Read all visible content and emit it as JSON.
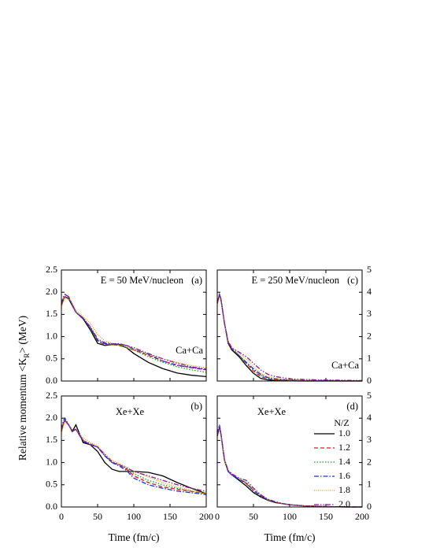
{
  "y_label": {
    "before": "Relative momentum <K",
    "sub": "R",
    "after": "> (MeV)"
  },
  "chart_data": [
    {
      "type": "line",
      "panel": "(a)",
      "energy": "E = 50 MeV/nucleon",
      "system": "Ca+Ca",
      "xtick_labels": false,
      "yaxis_side": "left",
      "x": [
        0,
        3,
        5,
        10,
        15,
        20,
        30,
        40,
        50,
        60,
        70,
        80,
        90,
        100,
        120,
        140,
        160,
        180,
        200
      ],
      "xlim": [
        0,
        200
      ],
      "xticks": [
        0,
        50,
        100,
        150,
        200
      ],
      "ylim": [
        0,
        2.5
      ],
      "yticks": [
        {
          "value": 0,
          "label": "0.0"
        },
        {
          "value": 0.5,
          "label": "0.5"
        },
        {
          "value": 1,
          "label": "1.0"
        },
        {
          "value": 1.5,
          "label": "1.5"
        },
        {
          "value": 2,
          "label": "2.0"
        },
        {
          "value": 2.5,
          "label": "2.5"
        }
      ],
      "series": [
        {
          "color": "#000000",
          "style": "solid",
          "values": [
            1.7,
            1.85,
            1.9,
            1.85,
            1.7,
            1.55,
            1.4,
            1.15,
            0.85,
            0.8,
            0.82,
            0.82,
            0.75,
            0.62,
            0.42,
            0.28,
            0.18,
            0.13,
            0.1
          ]
        },
        {
          "color": "#e8141c",
          "style": "dashed",
          "values": [
            1.7,
            1.85,
            1.9,
            1.88,
            1.72,
            1.55,
            1.42,
            1.2,
            0.9,
            0.82,
            0.82,
            0.8,
            0.75,
            0.7,
            0.58,
            0.45,
            0.36,
            0.3,
            0.25
          ]
        },
        {
          "color": "#1a9a1a",
          "style": "dotted",
          "values": [
            1.7,
            1.85,
            1.9,
            1.87,
            1.72,
            1.55,
            1.42,
            1.18,
            0.9,
            0.82,
            0.82,
            0.8,
            0.75,
            0.7,
            0.55,
            0.42,
            0.32,
            0.25,
            0.2
          ]
        },
        {
          "color": "#1c2fd8",
          "style": "dashdot",
          "values": [
            1.75,
            1.9,
            1.95,
            1.9,
            1.72,
            1.55,
            1.4,
            1.2,
            0.92,
            0.84,
            0.84,
            0.84,
            0.8,
            0.72,
            0.6,
            0.45,
            0.35,
            0.3,
            0.26
          ]
        },
        {
          "color": "#f39a00",
          "style": "shortdot",
          "values": [
            1.65,
            1.8,
            1.85,
            1.85,
            1.75,
            1.6,
            1.45,
            1.3,
            1.05,
            0.9,
            0.85,
            0.82,
            0.78,
            0.72,
            0.6,
            0.5,
            0.42,
            0.35,
            0.3
          ]
        },
        {
          "color": "#8a1a9a",
          "style": "dashdotdot",
          "values": [
            1.75,
            1.9,
            1.95,
            1.9,
            1.72,
            1.55,
            1.42,
            1.22,
            0.95,
            0.86,
            0.84,
            0.83,
            0.8,
            0.75,
            0.62,
            0.5,
            0.4,
            0.32,
            0.27
          ]
        }
      ]
    },
    {
      "type": "line",
      "panel": "(c)",
      "energy": "E = 250 MeV/nucleon",
      "system": "Ca+Ca",
      "xtick_labels": false,
      "yaxis_side": "right",
      "x": [
        0,
        3,
        5,
        10,
        15,
        20,
        30,
        40,
        50,
        60,
        70,
        80,
        90,
        100,
        120,
        140,
        160,
        180,
        200
      ],
      "xlim": [
        0,
        200
      ],
      "xticks": [
        0,
        50,
        100,
        150,
        200
      ],
      "ylim": [
        0,
        5
      ],
      "yticks": [
        0,
        1,
        2,
        3,
        4,
        5
      ],
      "series": [
        {
          "color": "#000000",
          "style": "solid",
          "values": [
            3.5,
            3.9,
            3.7,
            2.6,
            1.7,
            1.4,
            1.1,
            0.7,
            0.35,
            0.12,
            0.05,
            0.03,
            0.02,
            0.01,
            0,
            0,
            0,
            0,
            0
          ]
        },
        {
          "color": "#e8141c",
          "style": "dashed",
          "values": [
            3.5,
            3.9,
            3.7,
            2.6,
            1.75,
            1.45,
            1.15,
            0.8,
            0.45,
            0.2,
            0.1,
            0.06,
            0.04,
            0.03,
            0.02,
            0.01,
            0.01,
            0,
            0
          ]
        },
        {
          "color": "#1a9a1a",
          "style": "dotted",
          "values": [
            3.5,
            3.9,
            3.7,
            2.6,
            1.75,
            1.45,
            1.15,
            0.82,
            0.5,
            0.25,
            0.12,
            0.08,
            0.05,
            0.04,
            0.02,
            0.02,
            0.01,
            0.01,
            0
          ]
        },
        {
          "color": "#1c2fd8",
          "style": "dashdot",
          "values": [
            3.5,
            3.9,
            3.7,
            2.6,
            1.75,
            1.45,
            1.15,
            0.85,
            0.55,
            0.3,
            0.15,
            0.1,
            0.07,
            0.05,
            0.03,
            0.02,
            0.02,
            0.01,
            0.01
          ]
        },
        {
          "color": "#f39a00",
          "style": "shortdot",
          "values": [
            3.4,
            3.8,
            3.6,
            2.6,
            1.8,
            1.5,
            1.25,
            1.0,
            0.65,
            0.35,
            0.2,
            0.12,
            0.08,
            0.05,
            0.03,
            0.02,
            0.02,
            0.01,
            0.01
          ]
        },
        {
          "color": "#8a1a9a",
          "style": "dashdotdot",
          "values": [
            3.5,
            3.9,
            3.7,
            2.6,
            1.8,
            1.5,
            1.3,
            1.1,
            0.8,
            0.5,
            0.3,
            0.2,
            0.15,
            0.1,
            0.07,
            0.05,
            0.04,
            0.03,
            0.02
          ]
        }
      ]
    },
    {
      "type": "line",
      "panel": "(b)",
      "system": "Xe+Xe",
      "xtick_labels": true,
      "x_label": "Time (fm/c)",
      "yaxis_side": "left",
      "x": [
        0,
        3,
        5,
        10,
        15,
        20,
        30,
        40,
        50,
        60,
        70,
        80,
        90,
        100,
        120,
        140,
        160,
        180,
        200
      ],
      "xlim": [
        0,
        200
      ],
      "xticks": [
        0,
        50,
        100,
        150,
        200
      ],
      "ylim": [
        0,
        2.5
      ],
      "yticks": [
        {
          "value": 0,
          "label": "0.0"
        },
        {
          "value": 0.5,
          "label": "0.5"
        },
        {
          "value": 1,
          "label": "1.0"
        },
        {
          "value": 1.5,
          "label": "1.5"
        },
        {
          "value": 2,
          "label": "2.0"
        },
        {
          "value": 2.5,
          "label": "2.5"
        }
      ],
      "series": [
        {
          "color": "#000000",
          "style": "solid",
          "values": [
            1.7,
            1.9,
            1.95,
            1.85,
            1.7,
            1.85,
            1.45,
            1.4,
            1.25,
            1.0,
            0.85,
            0.8,
            0.8,
            0.8,
            0.78,
            0.7,
            0.55,
            0.42,
            0.3
          ]
        },
        {
          "color": "#e8141c",
          "style": "dashed",
          "values": [
            1.7,
            1.9,
            1.95,
            1.85,
            1.7,
            1.75,
            1.5,
            1.4,
            1.35,
            1.15,
            1.0,
            0.95,
            0.85,
            0.7,
            0.55,
            0.45,
            0.4,
            0.35,
            0.3
          ]
        },
        {
          "color": "#1a9a1a",
          "style": "dotted",
          "values": [
            1.7,
            1.9,
            1.95,
            1.85,
            1.72,
            1.75,
            1.5,
            1.42,
            1.35,
            1.15,
            1.0,
            0.95,
            0.87,
            0.75,
            0.6,
            0.5,
            0.42,
            0.35,
            0.3
          ]
        },
        {
          "color": "#1c2fd8",
          "style": "dashdot",
          "values": [
            1.75,
            1.95,
            2.0,
            1.85,
            1.7,
            1.75,
            1.48,
            1.4,
            1.35,
            1.15,
            1.0,
            0.92,
            0.82,
            0.65,
            0.5,
            0.42,
            0.36,
            0.32,
            0.28
          ]
        },
        {
          "color": "#f39a00",
          "style": "shortdot",
          "values": [
            1.65,
            1.85,
            1.9,
            1.85,
            1.75,
            1.75,
            1.55,
            1.45,
            1.38,
            1.2,
            1.05,
            0.98,
            0.9,
            0.8,
            0.68,
            0.55,
            0.45,
            0.37,
            0.3
          ]
        },
        {
          "color": "#8a1a9a",
          "style": "dashdotdot",
          "values": [
            1.75,
            1.9,
            1.95,
            1.85,
            1.72,
            1.75,
            1.5,
            1.42,
            1.35,
            1.18,
            1.02,
            0.95,
            0.88,
            0.8,
            0.7,
            0.6,
            0.5,
            0.42,
            0.35
          ]
        }
      ]
    },
    {
      "type": "line",
      "panel": "(d)",
      "system": "Xe+Xe",
      "xtick_labels": true,
      "x_label": "Time (fm/c)",
      "yaxis_side": "right",
      "legend": true,
      "legend_title": "N/Z",
      "x": [
        0,
        3,
        5,
        10,
        15,
        20,
        30,
        40,
        50,
        60,
        70,
        80,
        90,
        100,
        120,
        140,
        160,
        180,
        200
      ],
      "xlim": [
        0,
        200
      ],
      "xticks": [
        0,
        50,
        100,
        150,
        200
      ],
      "ylim": [
        0,
        5
      ],
      "yticks": [
        0,
        1,
        2,
        3,
        4,
        5
      ],
      "series": [
        {
          "name": "1.0",
          "color": "#000000",
          "style": "solid",
          "values": [
            3.2,
            3.6,
            3.3,
            2.1,
            1.6,
            1.45,
            1.2,
            0.95,
            0.65,
            0.45,
            0.3,
            0.2,
            0.15,
            0.1,
            0.05,
            0.03,
            0.01,
            0,
            0
          ]
        },
        {
          "name": "1.2",
          "color": "#e8141c",
          "style": "dashed",
          "values": [
            3.2,
            3.6,
            3.3,
            2.1,
            1.6,
            1.45,
            1.25,
            1.05,
            0.75,
            0.5,
            0.32,
            0.22,
            0.15,
            0.1,
            0.05,
            0.03,
            0.01,
            0,
            0
          ]
        },
        {
          "name": "1.4",
          "color": "#1a9a1a",
          "style": "dotted",
          "values": [
            3.2,
            3.6,
            3.3,
            2.1,
            1.6,
            1.45,
            1.25,
            1.05,
            0.72,
            0.48,
            0.32,
            0.22,
            0.15,
            0.1,
            0.05,
            0.03,
            0.01,
            0,
            0
          ]
        },
        {
          "name": "1.6",
          "color": "#1c2fd8",
          "style": "dashdot",
          "values": [
            3.3,
            3.7,
            3.35,
            2.1,
            1.6,
            1.45,
            1.25,
            1.1,
            0.75,
            0.5,
            0.33,
            0.22,
            0.15,
            0.1,
            0.05,
            0.03,
            0.01,
            0,
            0
          ]
        },
        {
          "name": "1.8",
          "color": "#f39a00",
          "style": "shortdot",
          "values": [
            3.1,
            3.5,
            3.3,
            2.1,
            1.65,
            1.5,
            1.3,
            1.1,
            0.8,
            0.55,
            0.35,
            0.24,
            0.16,
            0.1,
            0.05,
            0.03,
            0.01,
            0,
            0
          ]
        },
        {
          "name": "2.0",
          "color": "#8a1a9a",
          "style": "dashdotdot",
          "values": [
            3.2,
            3.6,
            3.3,
            2.15,
            1.65,
            1.5,
            1.3,
            1.2,
            0.85,
            0.55,
            0.35,
            0.24,
            0.16,
            0.1,
            0.05,
            0.03,
            0.01,
            0,
            0
          ]
        }
      ]
    }
  ]
}
